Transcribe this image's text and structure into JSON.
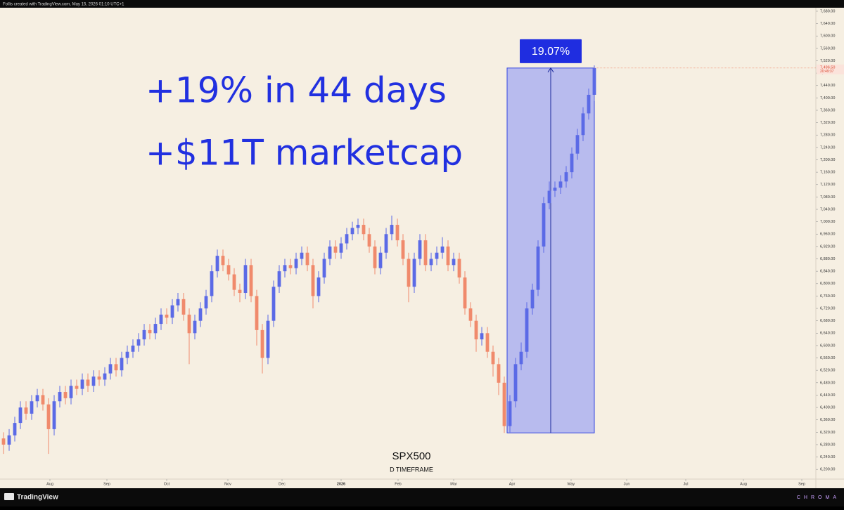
{
  "header": {
    "credit": "Follis created with TradingView.com, May 15, 2026 01:10 UTC+1"
  },
  "footer": {
    "brand": "TradingView",
    "watermark": "CHROMA"
  },
  "chart_data": {
    "type": "candlestick",
    "title": "SPX500",
    "subtitle": "D TIMEFRAME",
    "annotations": [
      "+19% in 44 days",
      "+$11T marketcap"
    ],
    "measure": {
      "label": "19.07%",
      "x": [
        179,
        210
      ],
      "y": [
        6318,
        7496.5
      ]
    },
    "last_price": {
      "value": 7496.5,
      "label": "7,496.50"
    },
    "countdown": "20:49:37",
    "up_color": "#5b6ae6",
    "down_color": "#f08a6c",
    "xlim": [
      -1.25,
      288.75
    ],
    "xticks": [
      {
        "value": 16.5,
        "label": "Aug"
      },
      {
        "value": 36.75,
        "label": "Sep"
      },
      {
        "value": 58,
        "label": "Oct"
      },
      {
        "value": 79.75,
        "label": "Nov"
      },
      {
        "value": 99,
        "label": "Dec"
      },
      {
        "value": 120,
        "label": "2026"
      },
      {
        "value": 140.25,
        "label": "Feb"
      },
      {
        "value": 160,
        "label": "Mar"
      },
      {
        "value": 180.75,
        "label": "Apr"
      },
      {
        "value": 201.75,
        "label": "May"
      },
      {
        "value": 221.5,
        "label": "Jun"
      },
      {
        "value": 242.5,
        "label": "Jul"
      },
      {
        "value": 263,
        "label": "Aug"
      },
      {
        "value": 283.75,
        "label": "Sep"
      }
    ],
    "ylim": [
      6146,
      7689
    ],
    "yticks": [
      {
        "value": 6200,
        "label": "6,200.00"
      },
      {
        "value": 6240,
        "label": "6,240.00"
      },
      {
        "value": 6280,
        "label": "6,280.00"
      },
      {
        "value": 6320,
        "label": "6,320.00"
      },
      {
        "value": 6360,
        "label": "6,360.00"
      },
      {
        "value": 6400,
        "label": "6,400.00"
      },
      {
        "value": 6440,
        "label": "6,440.00"
      },
      {
        "value": 6480,
        "label": "6,480.00"
      },
      {
        "value": 6520,
        "label": "6,520.00"
      },
      {
        "value": 6560,
        "label": "6,560.00"
      },
      {
        "value": 6600,
        "label": "6,600.00"
      },
      {
        "value": 6640,
        "label": "6,640.00"
      },
      {
        "value": 6680,
        "label": "6,680.00"
      },
      {
        "value": 6720,
        "label": "6,720.00"
      },
      {
        "value": 6760,
        "label": "6,760.00"
      },
      {
        "value": 6800,
        "label": "6,800.00"
      },
      {
        "value": 6840,
        "label": "6,840.00"
      },
      {
        "value": 6880,
        "label": "6,880.00"
      },
      {
        "value": 6920,
        "label": "6,920.00"
      },
      {
        "value": 6960,
        "label": "6,960.00"
      },
      {
        "value": 7000,
        "label": "7,000.00"
      },
      {
        "value": 7040,
        "label": "7,040.00"
      },
      {
        "value": 7080,
        "label": "7,080.00"
      },
      {
        "value": 7120,
        "label": "7,120.00"
      },
      {
        "value": 7160,
        "label": "7,160.00"
      },
      {
        "value": 7200,
        "label": "7,200.00"
      },
      {
        "value": 7240,
        "label": "7,240.00"
      },
      {
        "value": 7280,
        "label": "7,280.00"
      },
      {
        "value": 7320,
        "label": "7,320.00"
      },
      {
        "value": 7360,
        "label": "7,360.00"
      },
      {
        "value": 7400,
        "label": "7,400.00"
      },
      {
        "value": 7440,
        "label": "7,440.00"
      },
      {
        "value": 7480,
        "label": "7,480.00"
      },
      {
        "value": 7520,
        "label": "7,520.00"
      },
      {
        "value": 7560,
        "label": "7,560.00"
      },
      {
        "value": 7600,
        "label": "7,600.00"
      },
      {
        "value": 7640,
        "label": "7,640.00"
      },
      {
        "value": 7680,
        "label": "7,680.00"
      }
    ],
    "x": [
      0,
      2,
      4,
      6,
      8,
      10,
      12,
      14,
      16,
      18,
      20,
      22,
      24,
      26,
      28,
      30,
      32,
      34,
      36,
      38,
      40,
      42,
      44,
      46,
      48,
      50,
      52,
      54,
      56,
      58,
      60,
      62,
      64,
      66,
      68,
      70,
      72,
      74,
      76,
      78,
      80,
      82,
      84,
      86,
      88,
      90,
      92,
      94,
      96,
      98,
      100,
      102,
      104,
      106,
      108,
      110,
      112,
      114,
      116,
      118,
      120,
      122,
      124,
      126,
      128,
      130,
      132,
      134,
      136,
      138,
      140,
      142,
      144,
      146,
      148,
      150,
      152,
      154,
      156,
      158,
      160,
      162,
      164,
      166,
      168,
      170,
      172,
      174,
      176,
      178,
      180,
      182,
      184,
      186,
      188,
      190,
      192,
      194,
      196,
      198,
      200,
      202,
      204,
      206,
      208,
      210
    ],
    "open": [
      6300,
      6280,
      6310,
      6350,
      6400,
      6380,
      6420,
      6440,
      6410,
      6330,
      6420,
      6450,
      6430,
      6470,
      6460,
      6490,
      6470,
      6500,
      6490,
      6510,
      6540,
      6520,
      6560,
      6580,
      6600,
      6620,
      6650,
      6640,
      6670,
      6700,
      6690,
      6730,
      6750,
      6700,
      6640,
      6680,
      6720,
      6760,
      6840,
      6890,
      6860,
      6830,
      6780,
      6770,
      6860,
      6760,
      6650,
      6560,
      6680,
      6790,
      6840,
      6860,
      6850,
      6880,
      6900,
      6860,
      6760,
      6820,
      6880,
      6920,
      6900,
      6930,
      6960,
      6980,
      6990,
      6960,
      6920,
      6850,
      6900,
      6960,
      6990,
      6940,
      6880,
      6790,
      6880,
      6940,
      6860,
      6880,
      6900,
      6920,
      6860,
      6880,
      6820,
      6720,
      6680,
      6620,
      6640,
      6580,
      6540,
      6480,
      6340,
      6420,
      6540,
      6580,
      6720,
      6780,
      6920,
      7060,
      7100,
      7110,
      7130,
      7160,
      7220,
      7280,
      7350,
      7410
    ],
    "high": [
      6320,
      6330,
      6370,
      6420,
      6420,
      6440,
      6460,
      6460,
      6430,
      6440,
      6470,
      6470,
      6490,
      6490,
      6510,
      6510,
      6520,
      6520,
      6530,
      6560,
      6560,
      6580,
      6600,
      6620,
      6640,
      6670,
      6670,
      6690,
      6720,
      6720,
      6750,
      6770,
      6770,
      6720,
      6700,
      6740,
      6780,
      6860,
      6910,
      6910,
      6880,
      6850,
      6800,
      6880,
      6880,
      6780,
      6670,
      6700,
      6810,
      6860,
      6880,
      6880,
      6900,
      6920,
      6920,
      6880,
      6840,
      6900,
      6940,
      6940,
      6950,
      6980,
      7000,
      7010,
      7010,
      6980,
      6940,
      6920,
      6980,
      7020,
      7010,
      6960,
      6900,
      6900,
      6960,
      6960,
      6900,
      6920,
      6950,
      6940,
      6900,
      6900,
      6840,
      6740,
      6700,
      6660,
      6660,
      6600,
      6560,
      6500,
      6440,
      6560,
      6610,
      6740,
      6800,
      6940,
      7080,
      7130,
      7130,
      7150,
      7180,
      7240,
      7300,
      7370,
      7430,
      7505
    ],
    "low": [
      6250,
      6260,
      6290,
      6330,
      6360,
      6360,
      6400,
      6390,
      6250,
      6310,
      6400,
      6410,
      6410,
      6440,
      6440,
      6450,
      6450,
      6470,
      6470,
      6490,
      6500,
      6500,
      6540,
      6560,
      6580,
      6600,
      6620,
      6620,
      6650,
      6670,
      6670,
      6710,
      6680,
      6540,
      6620,
      6660,
      6700,
      6740,
      6820,
      6840,
      6810,
      6760,
      6740,
      6750,
      6740,
      6600,
      6510,
      6540,
      6660,
      6770,
      6820,
      6830,
      6830,
      6860,
      6840,
      6720,
      6740,
      6800,
      6860,
      6880,
      6880,
      6910,
      6940,
      6960,
      6940,
      6900,
      6830,
      6830,
      6880,
      6940,
      6920,
      6860,
      6740,
      6770,
      6860,
      6840,
      6840,
      6860,
      6880,
      6840,
      6840,
      6800,
      6700,
      6660,
      6580,
      6600,
      6560,
      6500,
      6440,
      6318,
      6320,
      6400,
      6520,
      6560,
      6700,
      6760,
      6900,
      7040,
      7080,
      7090,
      7110,
      7140,
      7200,
      7260,
      7330,
      7390
    ],
    "close": [
      6280,
      6310,
      6350,
      6400,
      6380,
      6420,
      6440,
      6410,
      6330,
      6420,
      6450,
      6430,
      6470,
      6460,
      6490,
      6470,
      6500,
      6490,
      6510,
      6540,
      6520,
      6560,
      6580,
      6600,
      6620,
      6650,
      6640,
      6670,
      6700,
      6690,
      6730,
      6750,
      6700,
      6640,
      6680,
      6720,
      6760,
      6840,
      6890,
      6860,
      6830,
      6780,
      6770,
      6860,
      6760,
      6650,
      6560,
      6680,
      6790,
      6840,
      6860,
      6850,
      6880,
      6900,
      6860,
      6760,
      6820,
      6880,
      6920,
      6900,
      6930,
      6960,
      6980,
      6990,
      6960,
      6920,
      6850,
      6900,
      6960,
      6990,
      6940,
      6880,
      6790,
      6880,
      6940,
      6860,
      6880,
      6900,
      6920,
      6860,
      6880,
      6820,
      6720,
      6680,
      6620,
      6640,
      6580,
      6540,
      6480,
      6340,
      6420,
      6540,
      6580,
      6720,
      6780,
      6920,
      7060,
      7100,
      7110,
      7130,
      7160,
      7220,
      7280,
      7350,
      7410,
      7496.5
    ]
  }
}
